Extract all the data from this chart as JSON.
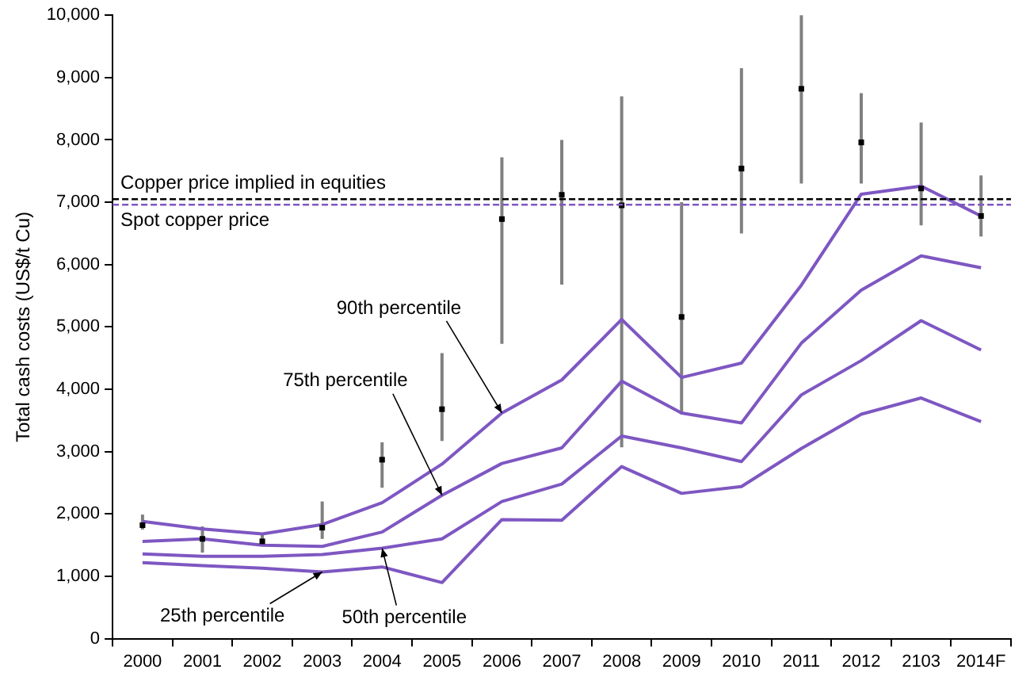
{
  "chart_data": {
    "type": "line",
    "ylabel": "Total cash costs (US$/t Cu)",
    "categories": [
      "2000",
      "2001",
      "2002",
      "2003",
      "2004",
      "2005",
      "2006",
      "2007",
      "2008",
      "2009",
      "2010",
      "2011",
      "2012",
      "2103",
      "2014F"
    ],
    "ylim": [
      0,
      10000
    ],
    "yticks": [
      {
        "value": 0,
        "label": "0"
      },
      {
        "value": 1000,
        "label": "1,000"
      },
      {
        "value": 2000,
        "label": "2,000"
      },
      {
        "value": 3000,
        "label": "3,000"
      },
      {
        "value": 4000,
        "label": "4,000"
      },
      {
        "value": 5000,
        "label": "5,000"
      },
      {
        "value": 6000,
        "label": "6,000"
      },
      {
        "value": 7000,
        "label": "7,000"
      },
      {
        "value": 8000,
        "label": "8,000"
      },
      {
        "value": 9000,
        "label": "9,000"
      },
      {
        "value": 10000,
        "label": "10,000"
      }
    ],
    "grid": false,
    "legend": false,
    "series": [
      {
        "color": "#7e57c2",
        "values": [
          1880,
          1760,
          1680,
          1830,
          2180,
          2800,
          3620,
          4150,
          5120,
          4190,
          4420,
          5670,
          7130,
          7260,
          6780
        ]
      },
      {
        "color": "#7e57c2",
        "values": [
          1560,
          1600,
          1500,
          1480,
          1710,
          2300,
          2810,
          3060,
          4130,
          3620,
          3460,
          4740,
          5590,
          6140,
          5950
        ]
      },
      {
        "color": "#7e57c2",
        "values": [
          1360,
          1320,
          1320,
          1350,
          1450,
          1600,
          2200,
          2480,
          3250,
          3060,
          2840,
          3910,
          4460,
          5100,
          4630
        ]
      },
      {
        "color": "#7e57c2",
        "values": [
          1220,
          1170,
          1130,
          1070,
          1150,
          900,
          1910,
          1900,
          2760,
          2330,
          2440,
          3050,
          3600,
          3860,
          3480
        ]
      },
      {
        "type": "scatter",
        "color": "#000000",
        "marker": "square",
        "values": [
          1820,
          1600,
          1560,
          1780,
          2870,
          3680,
          6730,
          7120,
          6950,
          5160,
          7540,
          8820,
          7960,
          7220,
          6780
        ],
        "errors": [
          [
            1750,
            1990
          ],
          [
            1380,
            1800
          ],
          [
            1500,
            1680
          ],
          [
            1600,
            2200
          ],
          [
            2420,
            3150
          ],
          [
            3170,
            4580
          ],
          [
            4730,
            7720
          ],
          [
            5680,
            8000
          ],
          [
            3070,
            8700
          ],
          [
            3600,
            7000
          ],
          [
            6500,
            9150
          ],
          [
            7300,
            10000
          ],
          [
            7300,
            8750
          ],
          [
            6630,
            8280
          ],
          [
            6450,
            7430
          ]
        ]
      }
    ],
    "ref_lines": [
      {
        "axis": "y",
        "value": 7050,
        "label": "Copper price implied in equities",
        "color": "#000000",
        "line_style": "dashed"
      },
      {
        "axis": "y",
        "value": 6960,
        "label": "Spot copper price",
        "color": "#7e57c2",
        "line_style": "dashed"
      }
    ],
    "annotations": [
      {
        "text": "90th percentile",
        "x": "2006",
        "y": 3620
      },
      {
        "text": "75th percentile",
        "x": "2005",
        "y": 2300
      },
      {
        "text": "50th percentile",
        "x": "2004",
        "y": 1450
      },
      {
        "text": "25th percentile",
        "x": "2003",
        "y": 1070
      }
    ]
  }
}
